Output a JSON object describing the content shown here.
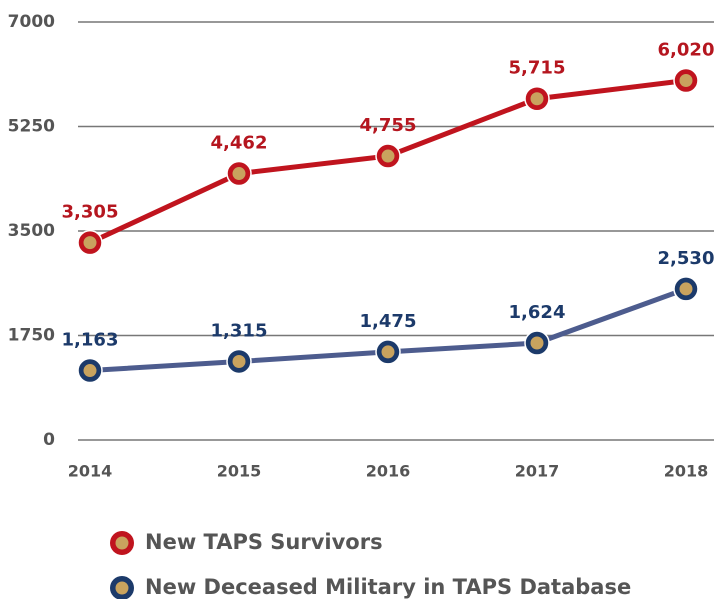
{
  "chart_data": {
    "type": "line",
    "categories": [
      "2014",
      "2015",
      "2016",
      "2017",
      "2018"
    ],
    "series": [
      {
        "name": "New TAPS Survivors",
        "color": "#c0141e",
        "values": [
          3305,
          4462,
          4755,
          5715,
          6020
        ],
        "value_labels": [
          "3,305",
          "4,462",
          "4,755",
          "5,715",
          "6,020"
        ]
      },
      {
        "name": "New Deceased Military in TAPS Database",
        "color": "#4d5c8e",
        "values": [
          1163,
          1315,
          1475,
          1624,
          2530
        ],
        "value_labels": [
          "1,163",
          "1,315",
          "1,475",
          "1,624",
          "2,530"
        ]
      }
    ],
    "ylim": [
      0,
      7000
    ],
    "yticks": [
      0,
      1750,
      3500,
      5250,
      7000
    ],
    "grid": true
  }
}
